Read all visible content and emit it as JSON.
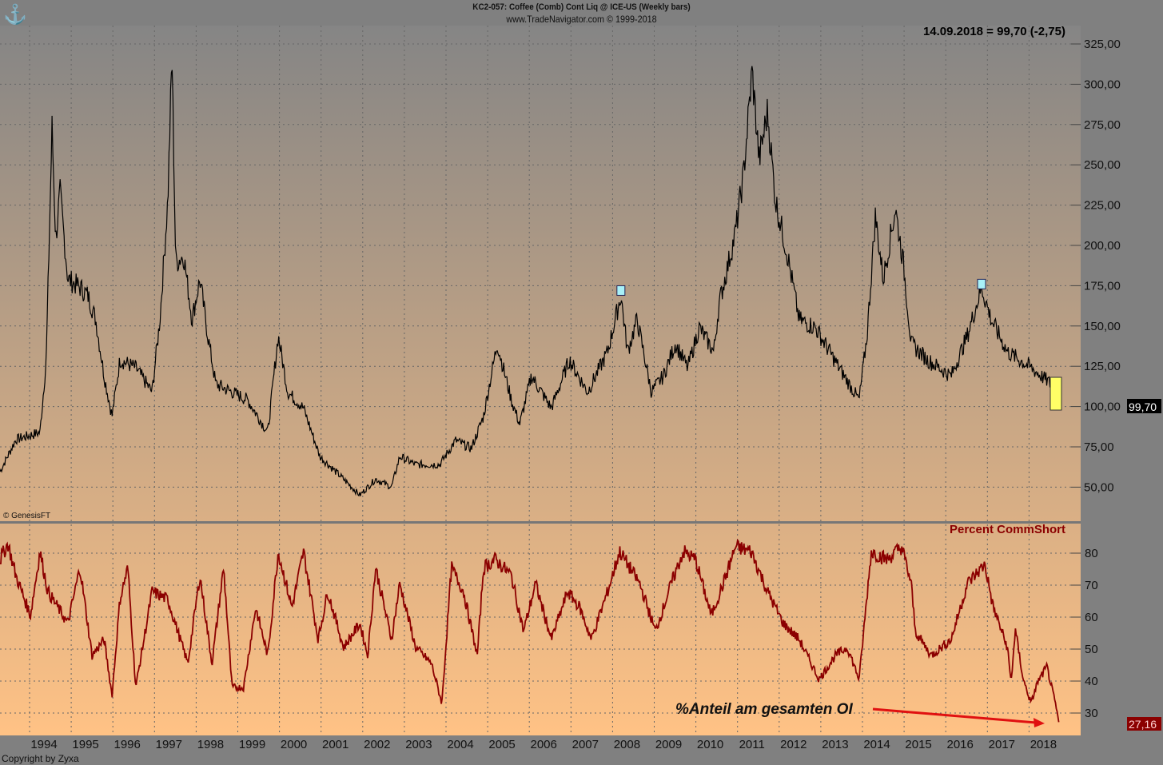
{
  "header": {
    "title": "KC2-057:  Coffee (Comb) Cont Liq @ ICE-US  (Weekly bars)",
    "subtitle": "www.TradeNavigator.com © 1999-2018",
    "readout": "14.09.2018 = 99,70 (-2,75)"
  },
  "footer": {
    "genesis": "© GenesisFT",
    "copyright": "Copyright by Zyxa"
  },
  "colors": {
    "price": "#000000",
    "indicator": "#8b0000",
    "arrow": "#e01010",
    "bg_top": "#858585",
    "bg_bottom": "#ffc285",
    "marker": "#a8f0f8",
    "highlight": "#ffff66"
  },
  "chart_data": [
    {
      "type": "line",
      "panel": "price",
      "ylim": [
        30,
        330
      ],
      "yticks": [
        "325,00",
        "300,00",
        "275,00",
        "250,00",
        "225,00",
        "200,00",
        "175,00",
        "150,00",
        "125,00",
        "100,00",
        "75,00",
        "50,00"
      ],
      "ytick_values": [
        325,
        300,
        275,
        250,
        225,
        200,
        175,
        150,
        125,
        100,
        75,
        50
      ],
      "last_label": "99,70",
      "last_value": 99.7,
      "x": [
        1993.29,
        1993.67,
        1994.25,
        1994.4,
        1994.54,
        1994.63,
        1994.73,
        1994.92,
        1995.21,
        1995.4,
        1995.59,
        1995.79,
        1995.98,
        1996.17,
        1996.55,
        1996.94,
        1997.13,
        1997.32,
        1997.42,
        1997.51,
        1997.7,
        1997.9,
        1998.09,
        1998.28,
        1998.47,
        1998.86,
        1999.24,
        1999.72,
        1999.97,
        2000.2,
        2000.58,
        2000.97,
        2001.54,
        2001.93,
        2002.31,
        2002.69,
        2002.89,
        2003.27,
        2003.85,
        2004.23,
        2004.61,
        2004.9,
        2005.23,
        2005.57,
        2005.77,
        2006.05,
        2006.53,
        2006.96,
        2007.4,
        2007.88,
        2008.2,
        2008.36,
        2008.59,
        2008.93,
        2009.22,
        2009.51,
        2009.8,
        2010.08,
        2010.43,
        2010.56,
        2010.95,
        2011.14,
        2011.35,
        2011.52,
        2011.72,
        2011.91,
        2012.2,
        2012.48,
        2012.87,
        2013.44,
        2013.92,
        2014.11,
        2014.31,
        2014.5,
        2014.79,
        2014.98,
        2015.17,
        2015.56,
        2016.13,
        2016.52,
        2016.86,
        2017.09,
        2017.48,
        2018.05,
        2018.53,
        2018.72
      ],
      "y": [
        59.6,
        79.5,
        84,
        129,
        273,
        203,
        233,
        179,
        174,
        169,
        154,
        119,
        94,
        129,
        124,
        109,
        154,
        228,
        318,
        189,
        194,
        154,
        179,
        144,
        114,
        109,
        104,
        84,
        144,
        109,
        99,
        69,
        55,
        45,
        55,
        50,
        69,
        64,
        64,
        79,
        74,
        94,
        139,
        104,
        89,
        119,
        99,
        129,
        109,
        134,
        169,
        134,
        154,
        109,
        119,
        139,
        124,
        149,
        134,
        164,
        208,
        243,
        308,
        253,
        283,
        228,
        194,
        154,
        149,
        124,
        104,
        144,
        218,
        179,
        223,
        189,
        139,
        129,
        119,
        144,
        174,
        154,
        134,
        124,
        114,
        99.7
      ],
      "markers": [
        {
          "x": 2008.2,
          "y": 172
        },
        {
          "x": 2016.86,
          "y": 176
        }
      ]
    },
    {
      "type": "line",
      "panel": "indicator",
      "series_name": "Percent CommShort",
      "ylim": [
        23,
        88
      ],
      "yticks": [
        "80",
        "70",
        "60",
        "50",
        "40",
        "30"
      ],
      "ytick_values": [
        80,
        70,
        60,
        50,
        40,
        30
      ],
      "last_label": "27,16",
      "last_value": 27.16,
      "x": [
        1993.29,
        1993.48,
        1993.67,
        1994.02,
        1994.25,
        1994.44,
        1994.92,
        1995.21,
        1995.5,
        1995.79,
        1995.98,
        1996.17,
        1996.36,
        1996.55,
        1996.94,
        1997.32,
        1997.8,
        1998.09,
        1998.38,
        1998.66,
        1998.86,
        1999.14,
        1999.43,
        1999.72,
        1999.97,
        2000.3,
        2000.58,
        2000.93,
        2001.16,
        2001.54,
        2001.93,
        2002.12,
        2002.31,
        2002.69,
        2002.89,
        2003.27,
        2003.65,
        2003.9,
        2004.13,
        2004.42,
        2004.75,
        2004.9,
        2005.19,
        2005.57,
        2005.86,
        2006.15,
        2006.53,
        2006.92,
        2007.21,
        2007.49,
        2007.88,
        2008.17,
        2008.65,
        2009.03,
        2009.41,
        2009.7,
        2009.99,
        2010.37,
        2010.66,
        2010.95,
        2011.33,
        2011.72,
        2012.1,
        2012.48,
        2012.96,
        2013.35,
        2013.64,
        2013.92,
        2014.21,
        2014.59,
        2014.94,
        2015.17,
        2015.27,
        2015.65,
        2016.13,
        2016.52,
        2016.94,
        2017.13,
        2017.48,
        2017.57,
        2017.67,
        2017.86,
        2018.05,
        2018.2,
        2018.43,
        2018.63,
        2018.72
      ],
      "y": [
        78,
        83,
        73,
        60.5,
        80.5,
        68,
        58,
        75.5,
        48,
        53,
        35.5,
        65.5,
        75.5,
        38,
        68,
        65.5,
        45.5,
        73,
        45.5,
        75.5,
        38,
        38,
        63,
        48,
        80.5,
        63,
        80.5,
        53,
        68,
        50.5,
        58,
        48,
        75.5,
        53,
        70.5,
        50.5,
        45.5,
        33,
        75.5,
        68,
        48,
        75.5,
        78,
        73,
        55.5,
        70.5,
        53,
        68,
        63,
        53,
        68,
        80.5,
        70.5,
        55.5,
        70.5,
        80.5,
        78,
        60.5,
        70.5,
        82,
        80.5,
        68,
        58,
        53,
        40.5,
        48,
        50.5,
        40.5,
        80.5,
        78,
        82,
        70.5,
        55.5,
        48,
        53,
        70.5,
        76.5,
        63.5,
        50.5,
        39.5,
        56,
        40.5,
        33,
        39.5,
        44.5,
        33,
        27.16
      ],
      "annotation": "%Anteil am gesamten OI"
    },
    {
      "type": "axis",
      "xticks": [
        "1994",
        "1995",
        "1996",
        "1997",
        "1998",
        "1999",
        "2000",
        "2001",
        "2002",
        "2003",
        "2004",
        "2005",
        "2006",
        "2007",
        "2008",
        "2009",
        "2010",
        "2011",
        "2012",
        "2013",
        "2014",
        "2015",
        "2016",
        "2017",
        "2018"
      ]
    }
  ]
}
